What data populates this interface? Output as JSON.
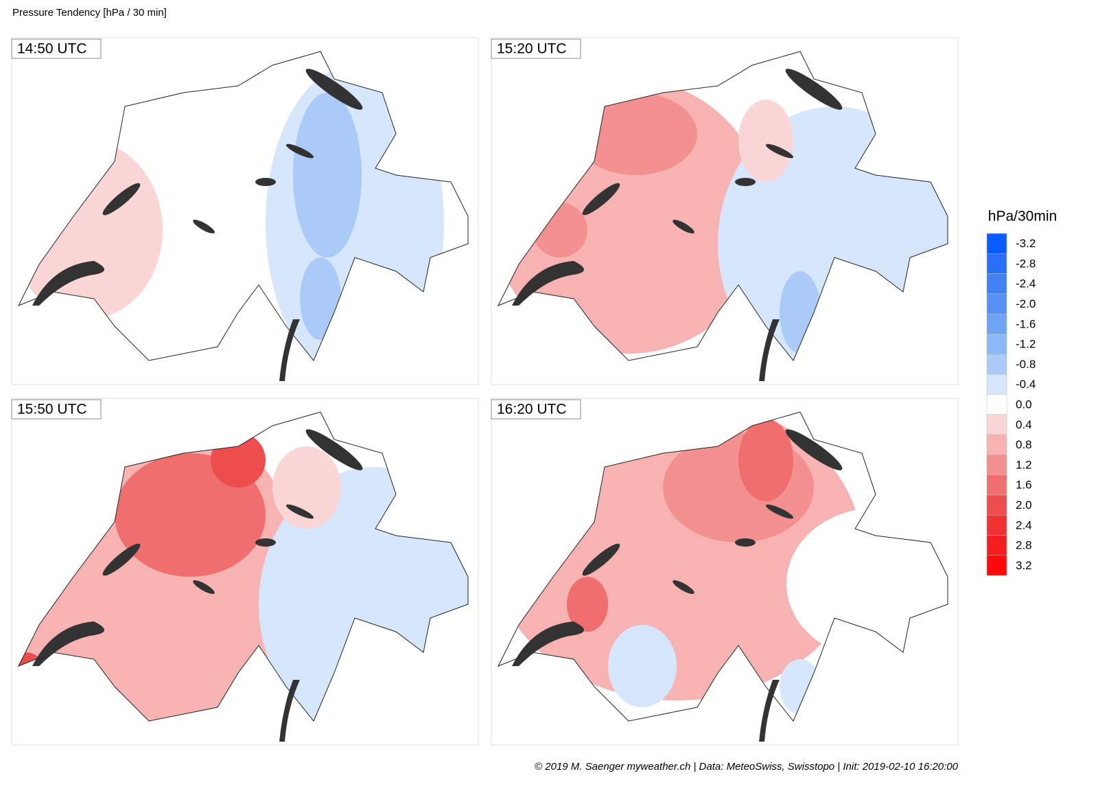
{
  "title": "Pressure Tendency [hPa / 30 min]",
  "panels": [
    {
      "label": "14:50 UTC"
    },
    {
      "label": "15:20 UTC"
    },
    {
      "label": "15:50 UTC"
    },
    {
      "label": "16:20 UTC"
    }
  ],
  "legend": {
    "title": "hPa/30min",
    "ticks": [
      -3.2,
      -2.8,
      -2.4,
      {
        "value": -2,
        "label": "-2.0"
      },
      -1.6,
      -1.2,
      -0.8,
      -0.4,
      {
        "value": 0,
        "label": "0.0"
      },
      0.4,
      0.8,
      1.2,
      1.6,
      {
        "value": 2,
        "label": "2.0"
      },
      2.4,
      2.8,
      3.2
    ],
    "colors": [
      "#0a5cff",
      "#2a6ff7",
      "#3f80f5",
      "#5592f3",
      "#6ea4f4",
      "#8bb8f6",
      "#aacbf8",
      "#d6e6fb",
      "#ffffff",
      "#fbd6d6",
      "#f7b2b2",
      "#f39090",
      "#f06e6e",
      "#ee4d4d",
      "#f03232",
      "#f51e1e",
      "#ff0a0a"
    ]
  },
  "footer": "© 2019 M. Saenger myweather.ch | Data: MeteoSwiss, Swisstopo | Init: 2019-02-10 16:20:00"
}
